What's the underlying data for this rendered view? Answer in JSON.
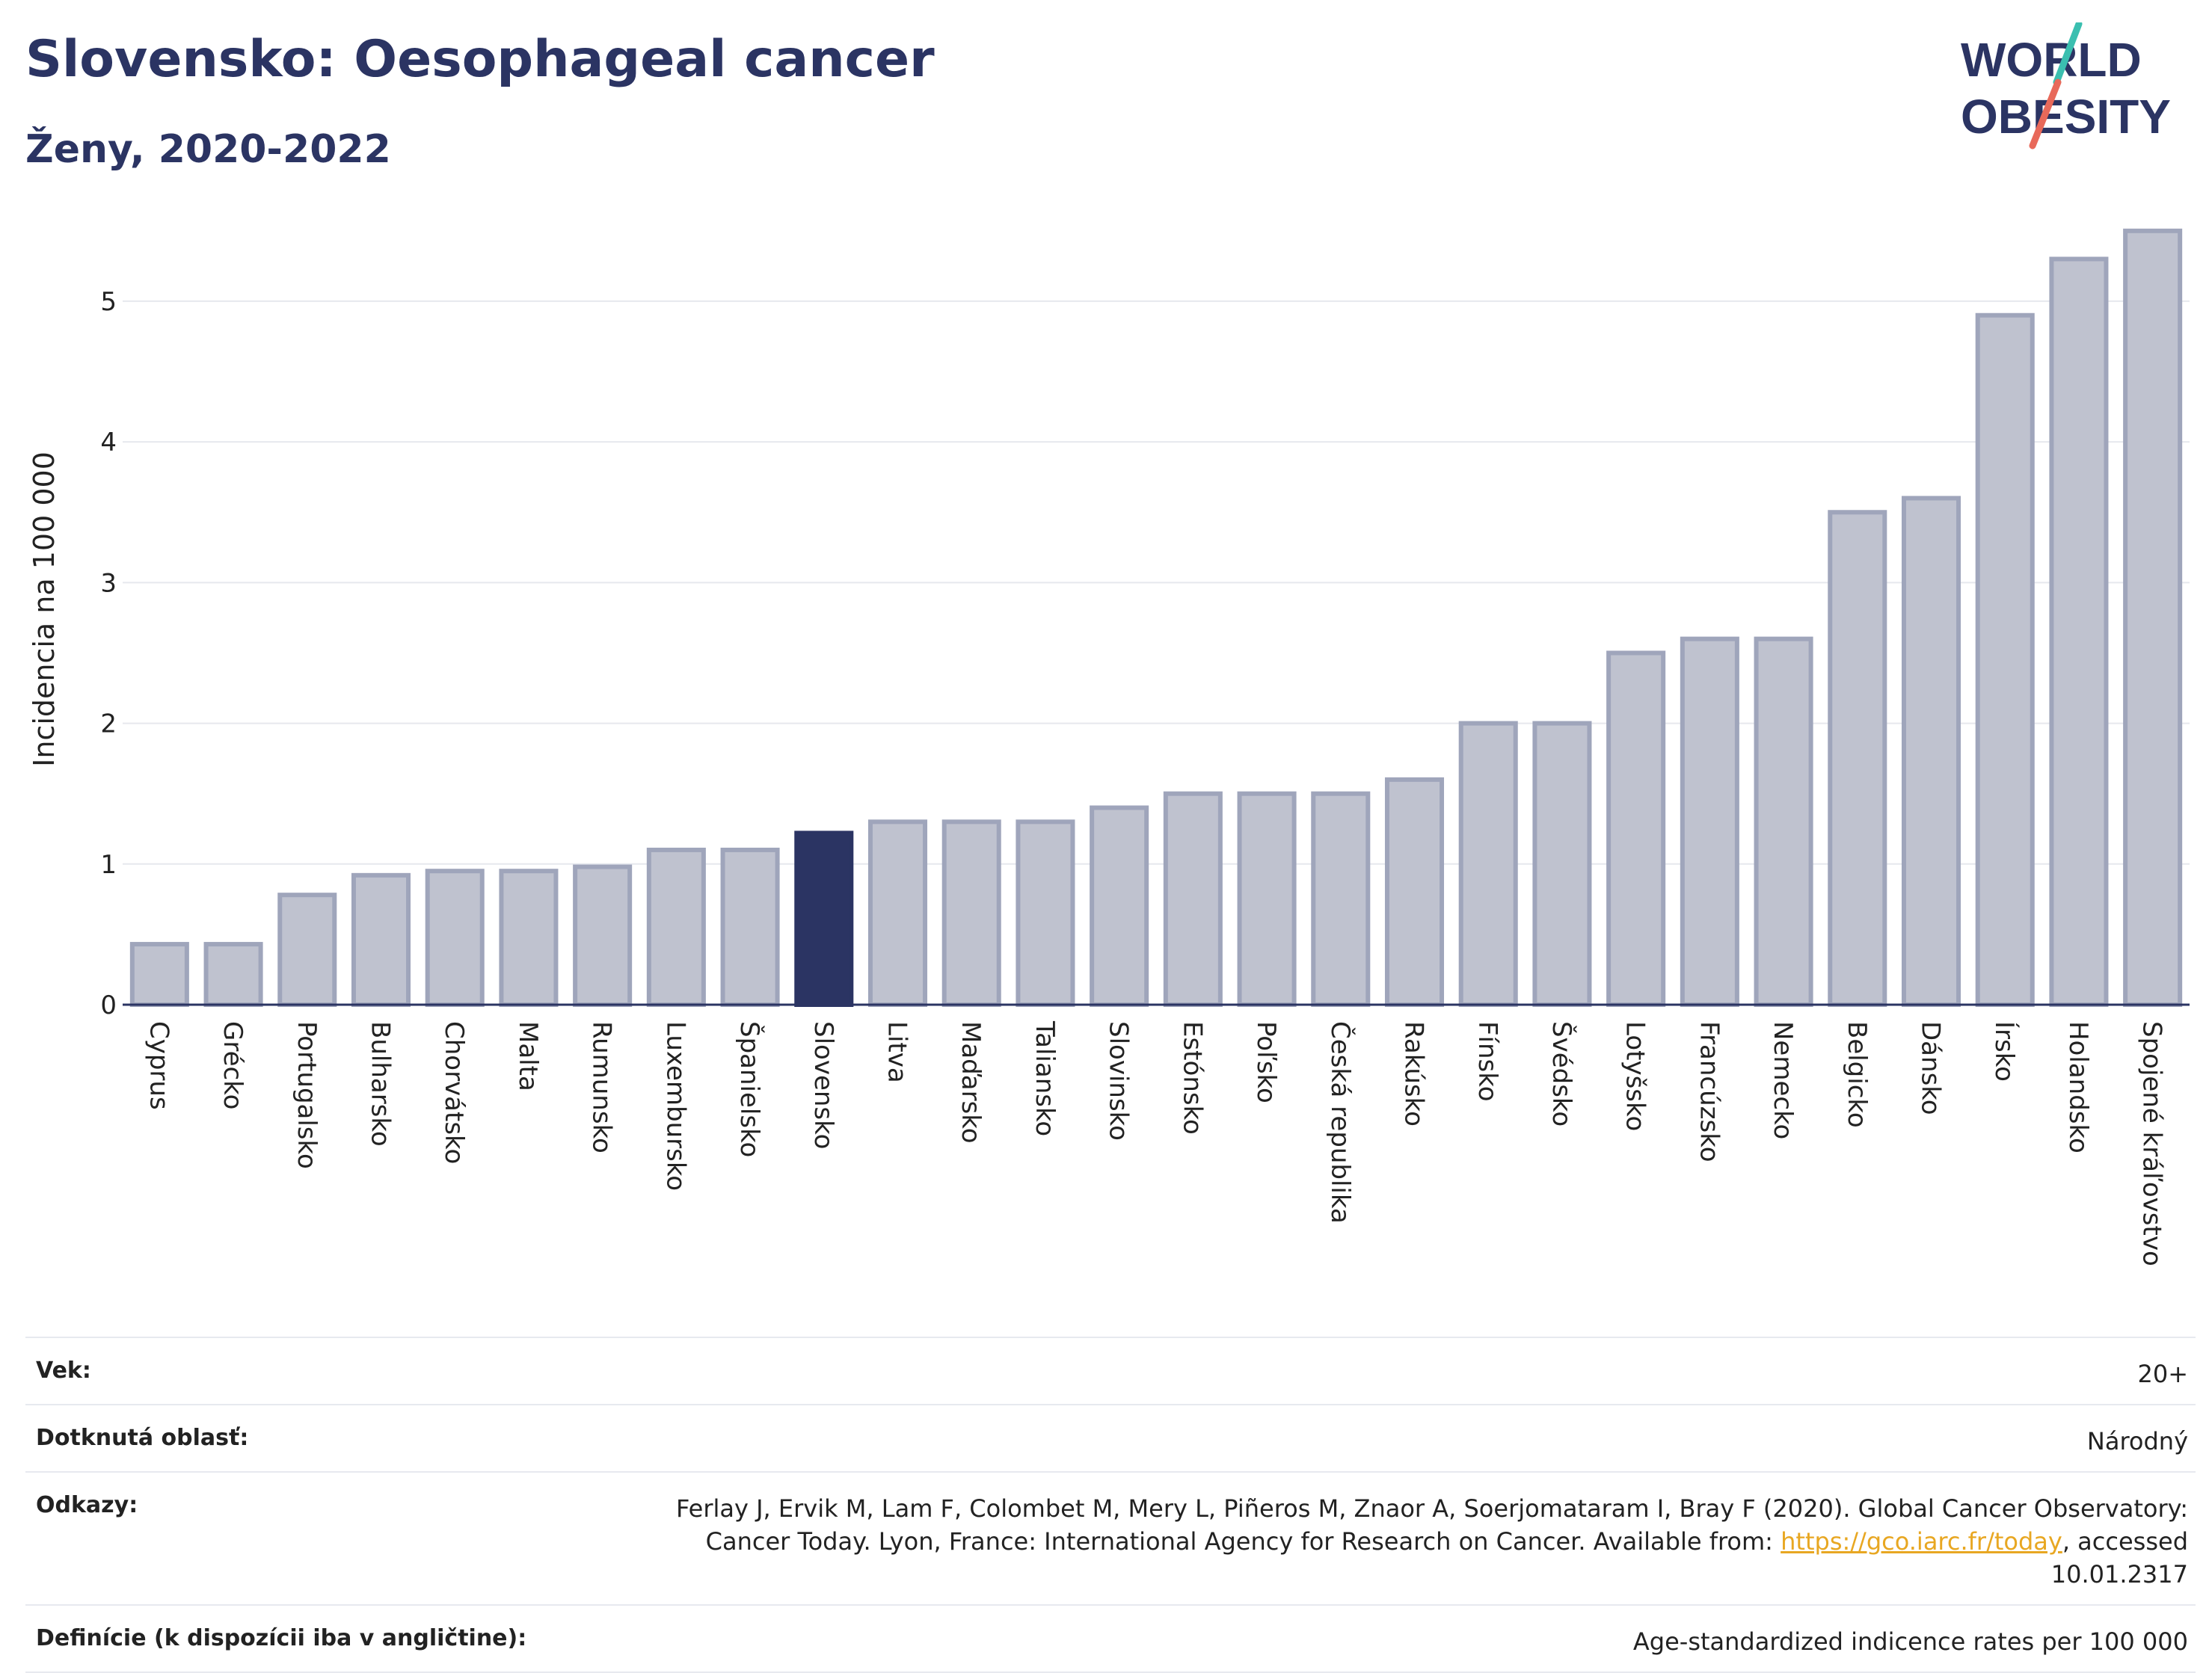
{
  "header": {
    "title": "Slovensko: Oesophageal cancer",
    "subtitle": "Ženy, 2020-2022"
  },
  "logo": {
    "line1": "WORLD",
    "line2": "OBESITY",
    "accent_teal": "#3bbfb0",
    "accent_coral": "#e8695a"
  },
  "colors": {
    "bar": "#bfc2cf",
    "bar_border": "#9fa5bb",
    "highlight": "#2b3463",
    "grid": "#e6e8ee",
    "axis": "#2b3463"
  },
  "chart_data": {
    "type": "bar",
    "title": "",
    "xlabel": "",
    "ylabel": "Incidencia na 100 000",
    "ylim": [
      0,
      5.6
    ],
    "yticks": [
      0,
      1,
      2,
      3,
      4,
      5
    ],
    "highlight": "Slovensko",
    "categories": [
      "Cyprus",
      "Grécko",
      "Portugalsko",
      "Bulharsko",
      "Chorvátsko",
      "Malta",
      "Rumunsko",
      "Luxembursko",
      "Španielsko",
      "Slovensko",
      "Litva",
      "Maďarsko",
      "Taliansko",
      "Slovinsko",
      "Estónsko",
      "Poľsko",
      "Česká republika",
      "Rakúsko",
      "Fínsko",
      "Švédsko",
      "Lotyšsko",
      "Francúzsko",
      "Nemecko",
      "Belgicko",
      "Dánsko",
      "Írsko",
      "Holandsko",
      "Spojené kráľovstvo"
    ],
    "values": [
      0.43,
      0.43,
      0.78,
      0.92,
      0.95,
      0.95,
      0.98,
      1.1,
      1.1,
      1.22,
      1.3,
      1.3,
      1.3,
      1.4,
      1.5,
      1.5,
      1.5,
      1.6,
      2.0,
      2.0,
      2.5,
      2.6,
      2.6,
      3.5,
      3.6,
      4.9,
      5.3,
      5.5
    ],
    "grid": true
  },
  "footer": {
    "rows": [
      {
        "label": "Vek:",
        "value": "20+"
      },
      {
        "label": "Dotknutá oblasť:",
        "value": "Národný"
      },
      {
        "label": "Odkazy:",
        "value_pre": "Ferlay J, Ervik M, Lam F, Colombet M, Mery L, Piñeros M, Znaor A, Soerjomataram I, Bray F (2020). Global Cancer Observatory: Cancer Today. Lyon, France: International Agency for Research on Cancer. Available from: ",
        "link": "https://gco.iarc.fr/today",
        "value_post": ", accessed 10.01.2317"
      },
      {
        "label": "Definície (k dispozícii iba v angličtine):",
        "value": "Age-standardized indicence rates per 100 000"
      }
    ]
  }
}
